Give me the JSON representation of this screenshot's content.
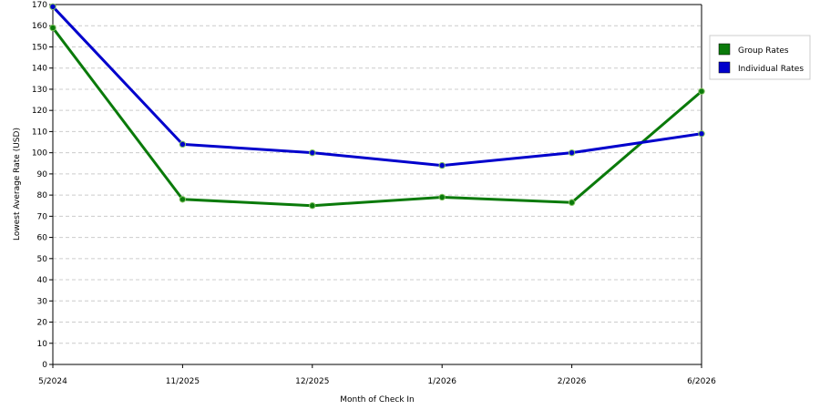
{
  "chart_data": {
    "type": "line",
    "title": "",
    "xlabel": "Month of Check In",
    "ylabel": "Lowest Average Rate (USD)",
    "ylim": [
      0,
      170
    ],
    "ytick_step": 10,
    "grid": true,
    "legend_position": "right",
    "categories": [
      "5/2024",
      "11/2025",
      "12/2025",
      "1/2026",
      "2/2026",
      "6/2026"
    ],
    "series": [
      {
        "name": "Group Rates",
        "color": "#0a7a0a",
        "values": [
          159,
          78,
          75,
          79,
          76.5,
          129
        ]
      },
      {
        "name": "Individual Rates",
        "color": "#0000cc",
        "values": [
          169,
          104,
          100,
          94,
          100,
          109
        ]
      }
    ]
  }
}
